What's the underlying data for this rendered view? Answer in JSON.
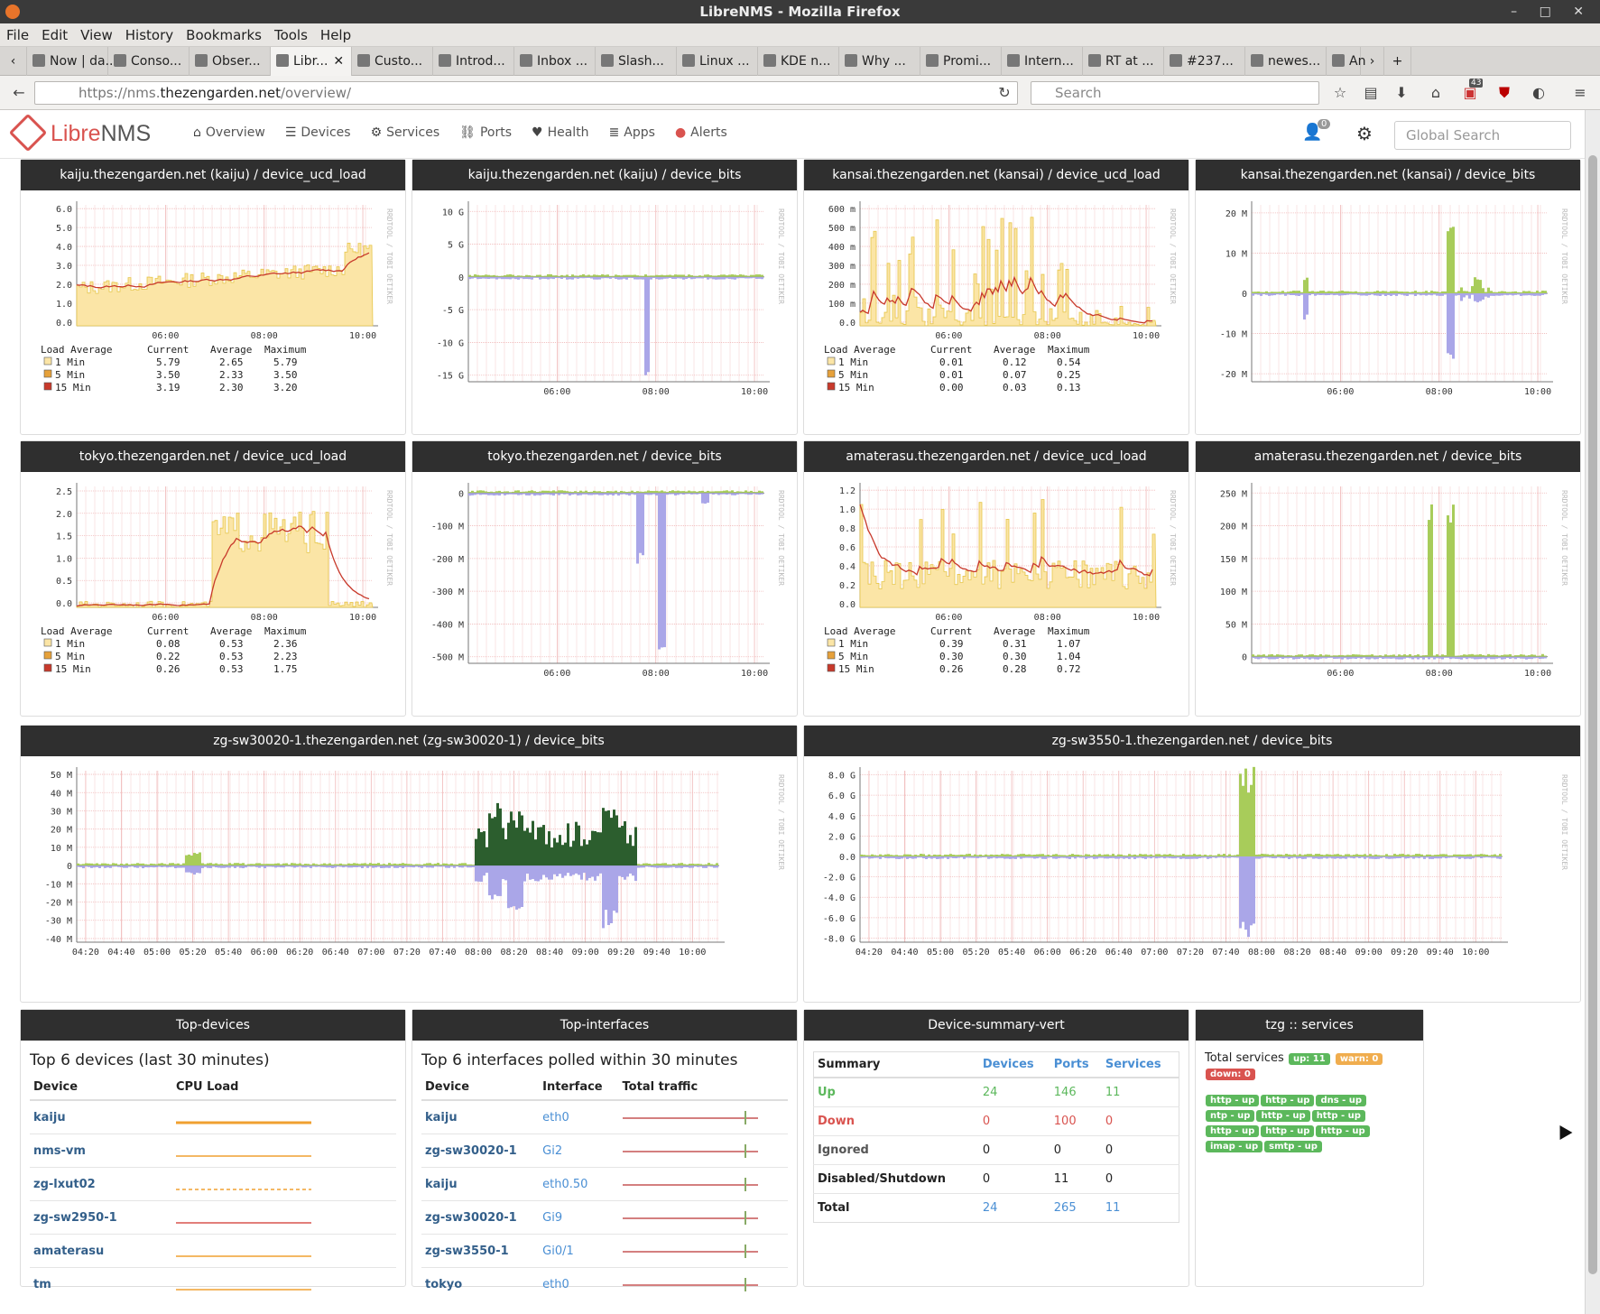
{
  "window": {
    "title": "LibreNMS - Mozilla Firefox",
    "controls": "– □ ✕"
  },
  "menu": [
    "File",
    "Edit",
    "View",
    "History",
    "Bookmarks",
    "Tools",
    "Help"
  ],
  "tabs": [
    {
      "label": "Now | da...",
      "icon": "page-icon"
    },
    {
      "label": "Conso...",
      "icon": "puzzle-icon"
    },
    {
      "label": "Obser...",
      "icon": "chart-icon"
    },
    {
      "label": "Libr...",
      "icon": "librenms-icon",
      "active": true
    },
    {
      "label": "Custo...",
      "icon": "google-icon"
    },
    {
      "label": "Introd...",
      "icon": "b-icon"
    },
    {
      "label": "Inbox ...",
      "icon": "mail-icon"
    },
    {
      "label": "Slash...",
      "icon": "z-icon"
    },
    {
      "label": "Linux ...",
      "icon": "z-icon"
    },
    {
      "label": "KDE n...",
      "icon": "kde-icon"
    },
    {
      "label": "Why ...",
      "icon": "z-icon"
    },
    {
      "label": "Promi...",
      "icon": "z-icon"
    },
    {
      "label": "Intern...",
      "icon": "z-icon"
    },
    {
      "label": "RT at ...",
      "icon": "rt-icon"
    },
    {
      "label": "#237...",
      "icon": "rt-icon"
    },
    {
      "label": "newes...",
      "icon": "reddit-icon"
    },
    {
      "label": "An",
      "icon": "google-icon"
    }
  ],
  "nav": {
    "url_prefix": "https://nms.",
    "url_domain": "thezengarden.net",
    "url_suffix": "/overview/",
    "search_placeholder": "Search",
    "badge": "43"
  },
  "app": {
    "logo_a": "Libre",
    "logo_b": "NMS",
    "menu": [
      {
        "label": "Overview",
        "icon": "home-icon"
      },
      {
        "label": "Devices",
        "icon": "server-icon"
      },
      {
        "label": "Services",
        "icon": "cogs-icon"
      },
      {
        "label": "Ports",
        "icon": "link-icon"
      },
      {
        "label": "Health",
        "icon": "heartbeat-icon"
      },
      {
        "label": "Apps",
        "icon": "tasks-icon"
      },
      {
        "label": "Alerts",
        "icon": "alert-icon"
      }
    ],
    "global_search": "Global Search",
    "notif": "0"
  },
  "graphs": {
    "g1": "kaiju.thezengarden.net (kaiju) / device_ucd_load",
    "g2": "kaiju.thezengarden.net (kaiju) / device_bits",
    "g3": "kansai.thezengarden.net (kansai) / device_ucd_load",
    "g4": "kansai.thezengarden.net (kansai) / device_bits",
    "g5": "tokyo.thezengarden.net / device_ucd_load",
    "g6": "tokyo.thezengarden.net / device_bits",
    "g7": "amaterasu.thezengarden.net / device_ucd_load",
    "g8": "amaterasu.thezengarden.net / device_bits",
    "g9": "zg-sw30020-1.thezengarden.net (zg-sw30020-1) / device_bits",
    "g10": "zg-sw3550-1.thezengarden.net / device_bits"
  },
  "chart_data": [
    {
      "type": "area",
      "title": "kaiju.thezengarden.net (kaiju) / device_ucd_load",
      "y_ticks": [
        "6.0",
        "5.0",
        "4.0",
        "3.0",
        "2.0",
        "1.0",
        "0.0"
      ],
      "x_ticks": [
        "06:00",
        "08:00",
        "10:00"
      ],
      "legend_header": [
        "Load Average",
        "Current",
        "Average",
        "Maximum"
      ],
      "rows": [
        [
          "1 Min",
          "5.79",
          "2.65",
          "5.79"
        ],
        [
          "5 Min",
          "3.50",
          "2.33",
          "3.50"
        ],
        [
          "15 Min",
          "3.19",
          "2.30",
          "3.20"
        ]
      ]
    },
    {
      "type": "area",
      "title": "kaiju.thezengarden.net (kaiju) / device_bits",
      "y_ticks": [
        "10 G",
        "5 G",
        "0",
        "-5 G",
        "-10 G",
        "-15 G"
      ],
      "x_ticks": [
        "06:00",
        "08:00",
        "10:00"
      ]
    },
    {
      "type": "area",
      "title": "kansai.thezengarden.net (kansai) / device_ucd_load",
      "y_ticks": [
        "600 m",
        "500 m",
        "400 m",
        "300 m",
        "200 m",
        "100 m",
        "0.0"
      ],
      "x_ticks": [
        "06:00",
        "08:00",
        "10:00"
      ],
      "legend_header": [
        "Load Average",
        "Current",
        "Average",
        "Maximum"
      ],
      "rows": [
        [
          "1 Min",
          "0.01",
          "0.12",
          "0.54"
        ],
        [
          "5 Min",
          "0.01",
          "0.07",
          "0.25"
        ],
        [
          "15 Min",
          "0.00",
          "0.03",
          "0.13"
        ]
      ]
    },
    {
      "type": "area",
      "title": "kansai.thezengarden.net (kansai) / device_bits",
      "y_ticks": [
        "20 M",
        "10 M",
        "0",
        "-10 M",
        "-20 M"
      ],
      "x_ticks": [
        "06:00",
        "08:00",
        "10:00"
      ]
    },
    {
      "type": "area",
      "title": "tokyo.thezengarden.net / device_ucd_load",
      "y_ticks": [
        "2.5",
        "2.0",
        "1.5",
        "1.0",
        "0.5",
        "0.0"
      ],
      "x_ticks": [
        "06:00",
        "08:00",
        "10:00"
      ],
      "legend_header": [
        "Load Average",
        "Current",
        "Average",
        "Maximum"
      ],
      "rows": [
        [
          "1 Min",
          "0.08",
          "0.53",
          "2.36"
        ],
        [
          "5 Min",
          "0.22",
          "0.53",
          "2.23"
        ],
        [
          "15 Min",
          "0.26",
          "0.53",
          "1.75"
        ]
      ]
    },
    {
      "type": "area",
      "title": "tokyo.thezengarden.net / device_bits",
      "y_ticks": [
        "0",
        "-100 M",
        "-200 M",
        "-300 M",
        "-400 M",
        "-500 M"
      ],
      "x_ticks": [
        "06:00",
        "08:00",
        "10:00"
      ]
    },
    {
      "type": "area",
      "title": "amaterasu.thezengarden.net / device_ucd_load",
      "y_ticks": [
        "1.2",
        "1.0",
        "0.8",
        "0.6",
        "0.4",
        "0.2",
        "0.0"
      ],
      "x_ticks": [
        "06:00",
        "08:00",
        "10:00"
      ],
      "legend_header": [
        "Load Average",
        "Current",
        "Average",
        "Maximum"
      ],
      "rows": [
        [
          "1 Min",
          "0.39",
          "0.31",
          "1.07"
        ],
        [
          "5 Min",
          "0.30",
          "0.30",
          "1.04"
        ],
        [
          "15 Min",
          "0.26",
          "0.28",
          "0.72"
        ]
      ]
    },
    {
      "type": "area",
      "title": "amaterasu.thezengarden.net / device_bits",
      "y_ticks": [
        "250 M",
        "200 M",
        "150 M",
        "100 M",
        "50 M",
        "0"
      ],
      "x_ticks": [
        "06:00",
        "08:00",
        "10:00"
      ]
    },
    {
      "type": "area",
      "title": "zg-sw30020-1.thezengarden.net (zg-sw30020-1) / device_bits",
      "y_ticks": [
        "50 M",
        "40 M",
        "30 M",
        "20 M",
        "10 M",
        "0",
        "-10 M",
        "-20 M",
        "-30 M",
        "-40 M"
      ],
      "x_ticks": [
        "04:20",
        "04:40",
        "05:00",
        "05:20",
        "05:40",
        "06:00",
        "06:20",
        "06:40",
        "07:00",
        "07:20",
        "07:40",
        "08:00",
        "08:20",
        "08:40",
        "09:00",
        "09:20",
        "09:40",
        "10:00"
      ]
    },
    {
      "type": "area",
      "title": "zg-sw3550-1.thezengarden.net / device_bits",
      "y_ticks": [
        "8.0 G",
        "6.0 G",
        "4.0 G",
        "2.0 G",
        "0.0",
        "-2.0 G",
        "-4.0 G",
        "-6.0 G",
        "-8.0 G"
      ],
      "x_ticks": [
        "04:20",
        "04:40",
        "05:00",
        "05:20",
        "05:40",
        "06:00",
        "06:20",
        "06:40",
        "07:00",
        "07:20",
        "07:40",
        "08:00",
        "08:20",
        "08:40",
        "09:00",
        "09:20",
        "09:40",
        "10:00"
      ]
    }
  ],
  "rrd_label": "RRDTOOL / TOBI OETIKER",
  "top_devices": {
    "header": "Top-devices",
    "title": "Top 6 devices (last 30 minutes)",
    "col_device": "Device",
    "col_cpu": "CPU Load",
    "rows": [
      "kaiju",
      "nms-vm",
      "zg-lxut02",
      "zg-sw2950-1",
      "amaterasu",
      "tm"
    ]
  },
  "top_interfaces": {
    "header": "Top-interfaces",
    "title": "Top 6 interfaces polled within 30 minutes",
    "col_device": "Device",
    "col_if": "Interface",
    "col_traffic": "Total traffic",
    "rows": [
      {
        "device": "kaiju",
        "if": "eth0"
      },
      {
        "device": "zg-sw30020-1",
        "if": "Gi2"
      },
      {
        "device": "kaiju",
        "if": "eth0.50"
      },
      {
        "device": "zg-sw30020-1",
        "if": "Gi9"
      },
      {
        "device": "zg-sw3550-1",
        "if": "Gi0/1"
      },
      {
        "device": "tokyo",
        "if": "eth0"
      }
    ]
  },
  "summary": {
    "header": "Device-summary-vert",
    "cols": [
      "Summary",
      "Devices",
      "Ports",
      "Services"
    ],
    "rows": [
      [
        "Up",
        "24",
        "146",
        "11"
      ],
      [
        "Down",
        "0",
        "100",
        "0"
      ],
      [
        "Ignored",
        "0",
        "0",
        "0"
      ],
      [
        "Disabled/Shutdown",
        "0",
        "11",
        "0"
      ],
      [
        "Total",
        "24",
        "265",
        "11"
      ]
    ]
  },
  "services": {
    "header": "tzg :: services",
    "total_label": "Total services",
    "up": "up: 11",
    "warn": "warn: 0",
    "down": "down: 0",
    "items": [
      "http - up",
      "http - up",
      "dns - up",
      "ntp - up",
      "http - up",
      "http - up",
      "http - up",
      "http - up",
      "http - up",
      "imap - up",
      "smtp - up"
    ]
  },
  "colors": {
    "accent": "#d9534f",
    "panel_head": "#2f2f2f",
    "up": "#5cb85c",
    "warn": "#f0ad4e",
    "down": "#d9534f",
    "link": "#335f8a"
  }
}
